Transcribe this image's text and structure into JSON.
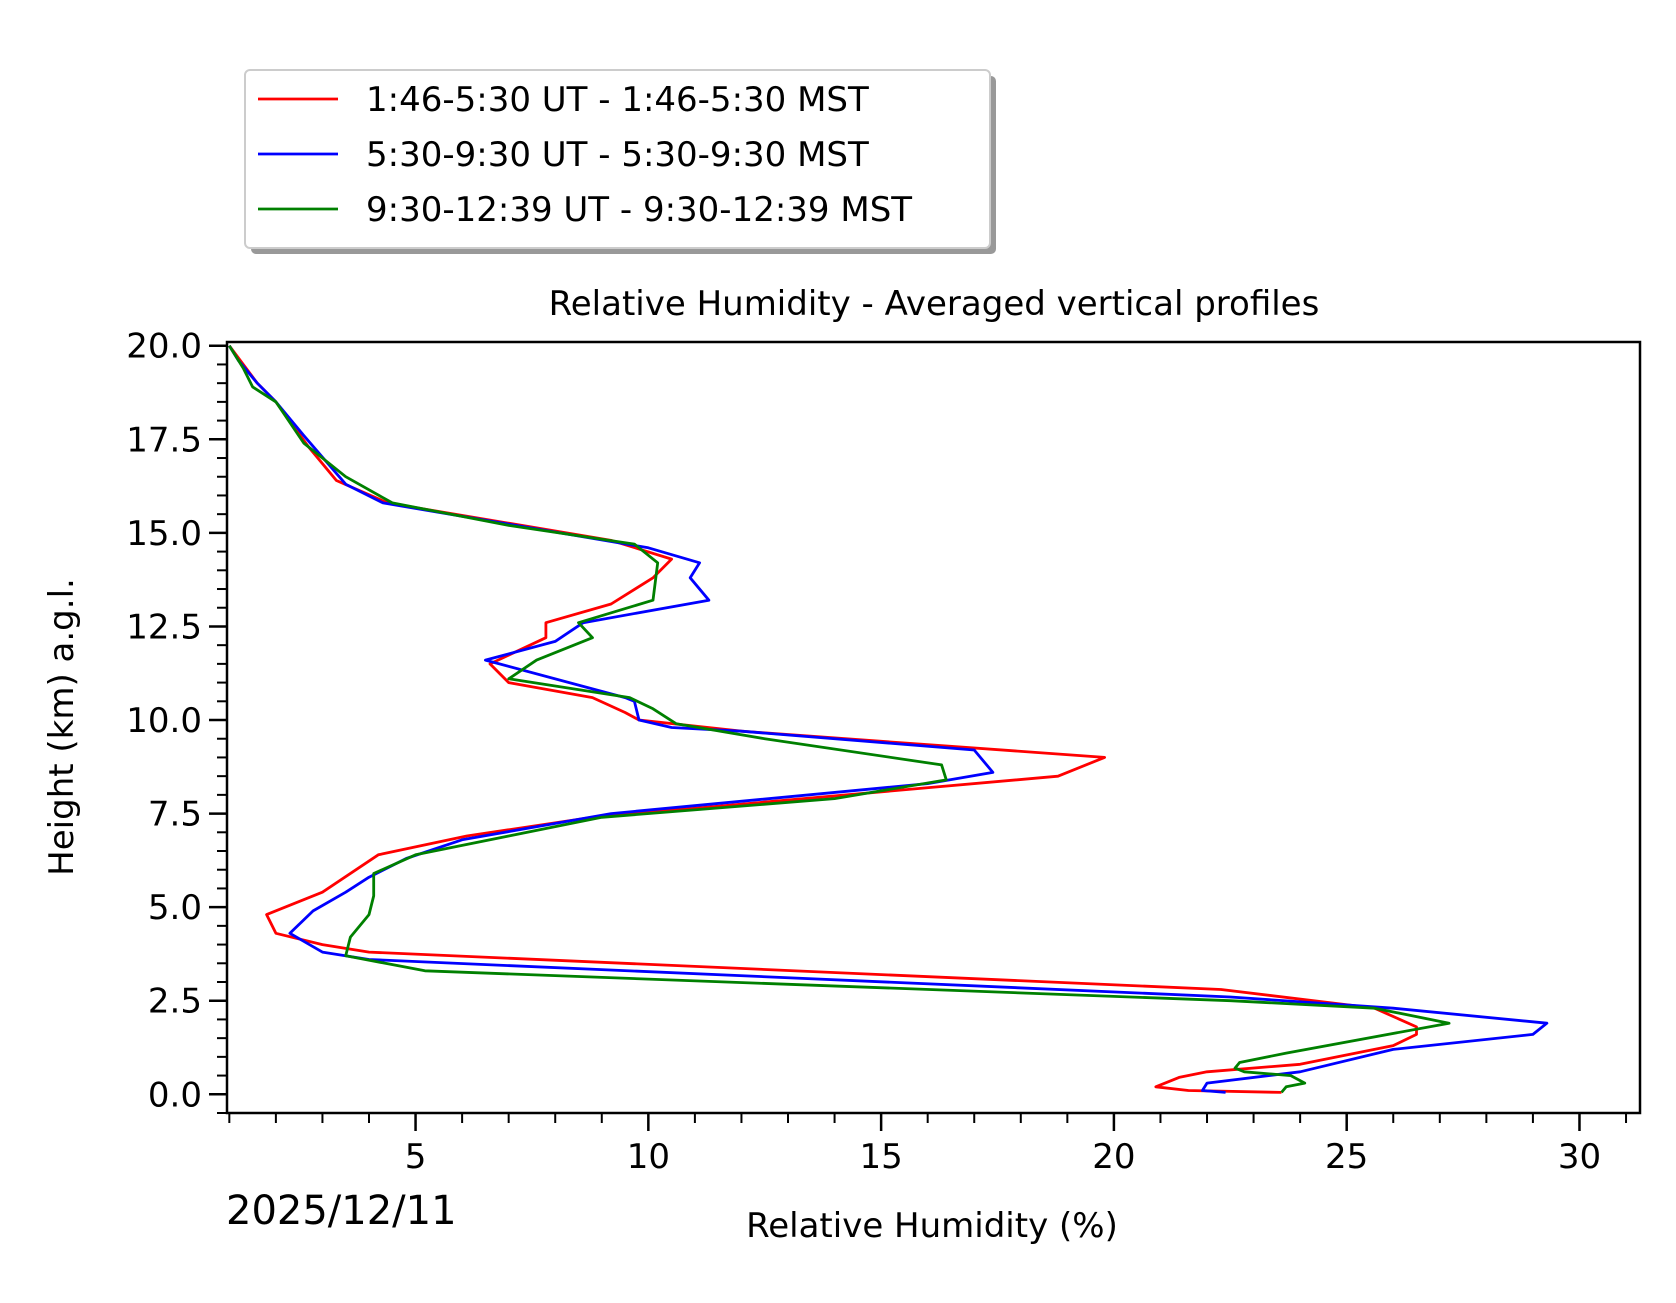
{
  "chart_data": {
    "type": "line",
    "title": "Relative Humidity - Averaged vertical profiles",
    "xlabel": "Relative Humidity (%)",
    "ylabel": "Height (km) a.g.l.",
    "date_label": "2025/12/11",
    "xlim": [
      0.95,
      31.3
    ],
    "ylim": [
      -0.5,
      20.1
    ],
    "x_ticks": [
      5,
      10,
      15,
      20,
      25,
      30
    ],
    "x_tick_labels": [
      "5",
      "10",
      "15",
      "20",
      "25",
      "30"
    ],
    "y_ticks": [
      0,
      2.5,
      5,
      7.5,
      10,
      12.5,
      15,
      17.5,
      20
    ],
    "y_tick_labels": [
      "0.0",
      "2.5",
      "5.0",
      "7.5",
      "10.0",
      "12.5",
      "15.0",
      "17.5",
      "20.0"
    ],
    "legend_position": "above-left",
    "series": [
      {
        "name": "1:46-5:30 UT - 1:46-5:30 MST",
        "color": "#ff0000",
        "points": [
          [
            23.6,
            0.05
          ],
          [
            21.6,
            0.1
          ],
          [
            20.9,
            0.2
          ],
          [
            21.4,
            0.45
          ],
          [
            22.0,
            0.6
          ],
          [
            24.0,
            0.8
          ],
          [
            26.0,
            1.3
          ],
          [
            26.5,
            1.6
          ],
          [
            26.5,
            1.8
          ],
          [
            25.6,
            2.3
          ],
          [
            22.3,
            2.8
          ],
          [
            4.0,
            3.8
          ],
          [
            3.0,
            4.0
          ],
          [
            2.0,
            4.3
          ],
          [
            1.8,
            4.8
          ],
          [
            3.0,
            5.4
          ],
          [
            4.2,
            6.4
          ],
          [
            6.1,
            6.9
          ],
          [
            8.8,
            7.4
          ],
          [
            18.8,
            8.5
          ],
          [
            19.8,
            9.0
          ],
          [
            12.0,
            9.7
          ],
          [
            9.8,
            10.0
          ],
          [
            9.5,
            10.2
          ],
          [
            8.8,
            10.6
          ],
          [
            7.0,
            11.0
          ],
          [
            6.6,
            11.5
          ],
          [
            7.8,
            12.2
          ],
          [
            7.8,
            12.6
          ],
          [
            9.2,
            13.1
          ],
          [
            10.1,
            13.8
          ],
          [
            10.5,
            14.3
          ],
          [
            9.2,
            14.8
          ],
          [
            4.4,
            15.8
          ],
          [
            3.3,
            16.4
          ],
          [
            2.7,
            17.3
          ],
          [
            2.0,
            18.5
          ],
          [
            1.6,
            19.0
          ],
          [
            1.3,
            19.5
          ],
          [
            1.0,
            20.0
          ]
        ]
      },
      {
        "name": "5:30-9:30 UT - 5:30-9:30 MST",
        "color": "#0000ff",
        "points": [
          [
            22.4,
            0.05
          ],
          [
            21.9,
            0.1
          ],
          [
            22.0,
            0.3
          ],
          [
            24.0,
            0.6
          ],
          [
            26.0,
            1.2
          ],
          [
            29.0,
            1.6
          ],
          [
            29.3,
            1.9
          ],
          [
            26.0,
            2.3
          ],
          [
            22.5,
            2.6
          ],
          [
            4.0,
            3.6
          ],
          [
            3.0,
            3.8
          ],
          [
            2.3,
            4.3
          ],
          [
            2.8,
            4.9
          ],
          [
            3.5,
            5.4
          ],
          [
            4.0,
            5.8
          ],
          [
            4.8,
            6.3
          ],
          [
            6.0,
            6.8
          ],
          [
            9.2,
            7.5
          ],
          [
            16.0,
            8.3
          ],
          [
            17.4,
            8.6
          ],
          [
            17.0,
            9.2
          ],
          [
            12.0,
            9.7
          ],
          [
            10.5,
            9.8
          ],
          [
            9.8,
            10.0
          ],
          [
            9.7,
            10.5
          ],
          [
            9.5,
            10.6
          ],
          [
            6.5,
            11.6
          ],
          [
            8.0,
            12.1
          ],
          [
            8.6,
            12.6
          ],
          [
            11.3,
            13.2
          ],
          [
            10.9,
            13.8
          ],
          [
            11.1,
            14.2
          ],
          [
            10.0,
            14.6
          ],
          [
            4.3,
            15.8
          ],
          [
            3.5,
            16.3
          ],
          [
            2.6,
            17.6
          ],
          [
            2.0,
            18.5
          ],
          [
            1.6,
            19.0
          ],
          [
            1.2,
            19.6
          ],
          [
            1.0,
            20.0
          ]
        ]
      },
      {
        "name": "9:30-12:39 UT - 9:30-12:39 MST",
        "color": "#008000",
        "points": [
          [
            23.6,
            0.05
          ],
          [
            23.7,
            0.2
          ],
          [
            24.1,
            0.3
          ],
          [
            23.8,
            0.5
          ],
          [
            22.8,
            0.6
          ],
          [
            22.6,
            0.7
          ],
          [
            22.7,
            0.85
          ],
          [
            23.7,
            1.1
          ],
          [
            27.2,
            1.9
          ],
          [
            25.6,
            2.3
          ],
          [
            22.5,
            2.5
          ],
          [
            5.2,
            3.3
          ],
          [
            3.5,
            3.7
          ],
          [
            3.6,
            4.2
          ],
          [
            4.0,
            4.8
          ],
          [
            4.1,
            5.3
          ],
          [
            4.1,
            5.9
          ],
          [
            5.0,
            6.4
          ],
          [
            7.0,
            6.9
          ],
          [
            9.0,
            7.4
          ],
          [
            14.0,
            7.9
          ],
          [
            16.4,
            8.4
          ],
          [
            16.3,
            8.8
          ],
          [
            12.5,
            9.5
          ],
          [
            10.6,
            9.9
          ],
          [
            10.1,
            10.3
          ],
          [
            9.6,
            10.6
          ],
          [
            7.0,
            11.1
          ],
          [
            7.6,
            11.6
          ],
          [
            8.8,
            12.2
          ],
          [
            8.5,
            12.6
          ],
          [
            10.1,
            13.2
          ],
          [
            10.2,
            14.2
          ],
          [
            9.7,
            14.7
          ],
          [
            7.0,
            15.2
          ],
          [
            4.5,
            15.8
          ],
          [
            3.5,
            16.5
          ],
          [
            2.6,
            17.4
          ],
          [
            2.0,
            18.5
          ],
          [
            1.5,
            18.9
          ],
          [
            1.3,
            19.4
          ],
          [
            1.0,
            20.0
          ]
        ]
      }
    ]
  }
}
